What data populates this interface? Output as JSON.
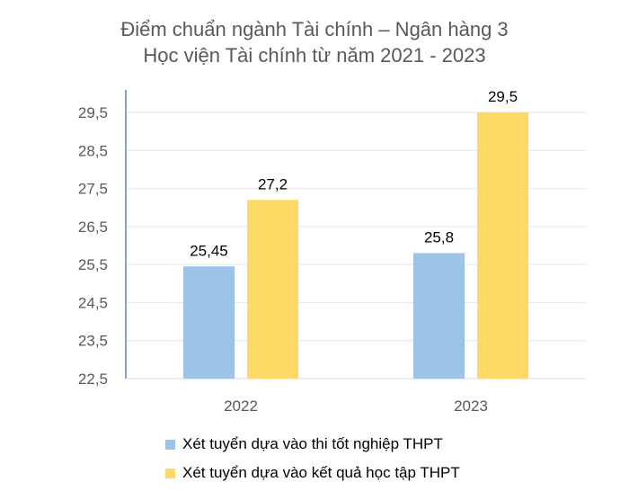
{
  "chart_data": {
    "type": "bar",
    "title": "Điểm chuẩn ngành Tài chính – Ngân hàng 3",
    "subtitle": "Học viện Tài chính từ năm 2021 - 2023",
    "categories": [
      "2022",
      "2023"
    ],
    "series": [
      {
        "name": "Xét tuyển dựa vào thi tốt nghiệp THPT",
        "values": [
          25.45,
          25.8
        ],
        "labels": [
          "25,45",
          "25,8"
        ],
        "color": "#9DC3E6"
      },
      {
        "name": "Xét tuyển dựa vào kết quả học tập THPT",
        "values": [
          27.2,
          29.5
        ],
        "labels": [
          "27,2",
          "29,5"
        ],
        "color": "#FFD966"
      }
    ],
    "ylim": [
      22.5,
      30.0
    ],
    "yticks": [
      "22,5",
      "23,5",
      "24,5",
      "25,5",
      "26,5",
      "27,5",
      "28,5",
      "29,5"
    ],
    "ytick_values": [
      22.5,
      23.5,
      24.5,
      25.5,
      26.5,
      27.5,
      28.5,
      29.5
    ],
    "grid": true,
    "legend_position": "bottom"
  }
}
